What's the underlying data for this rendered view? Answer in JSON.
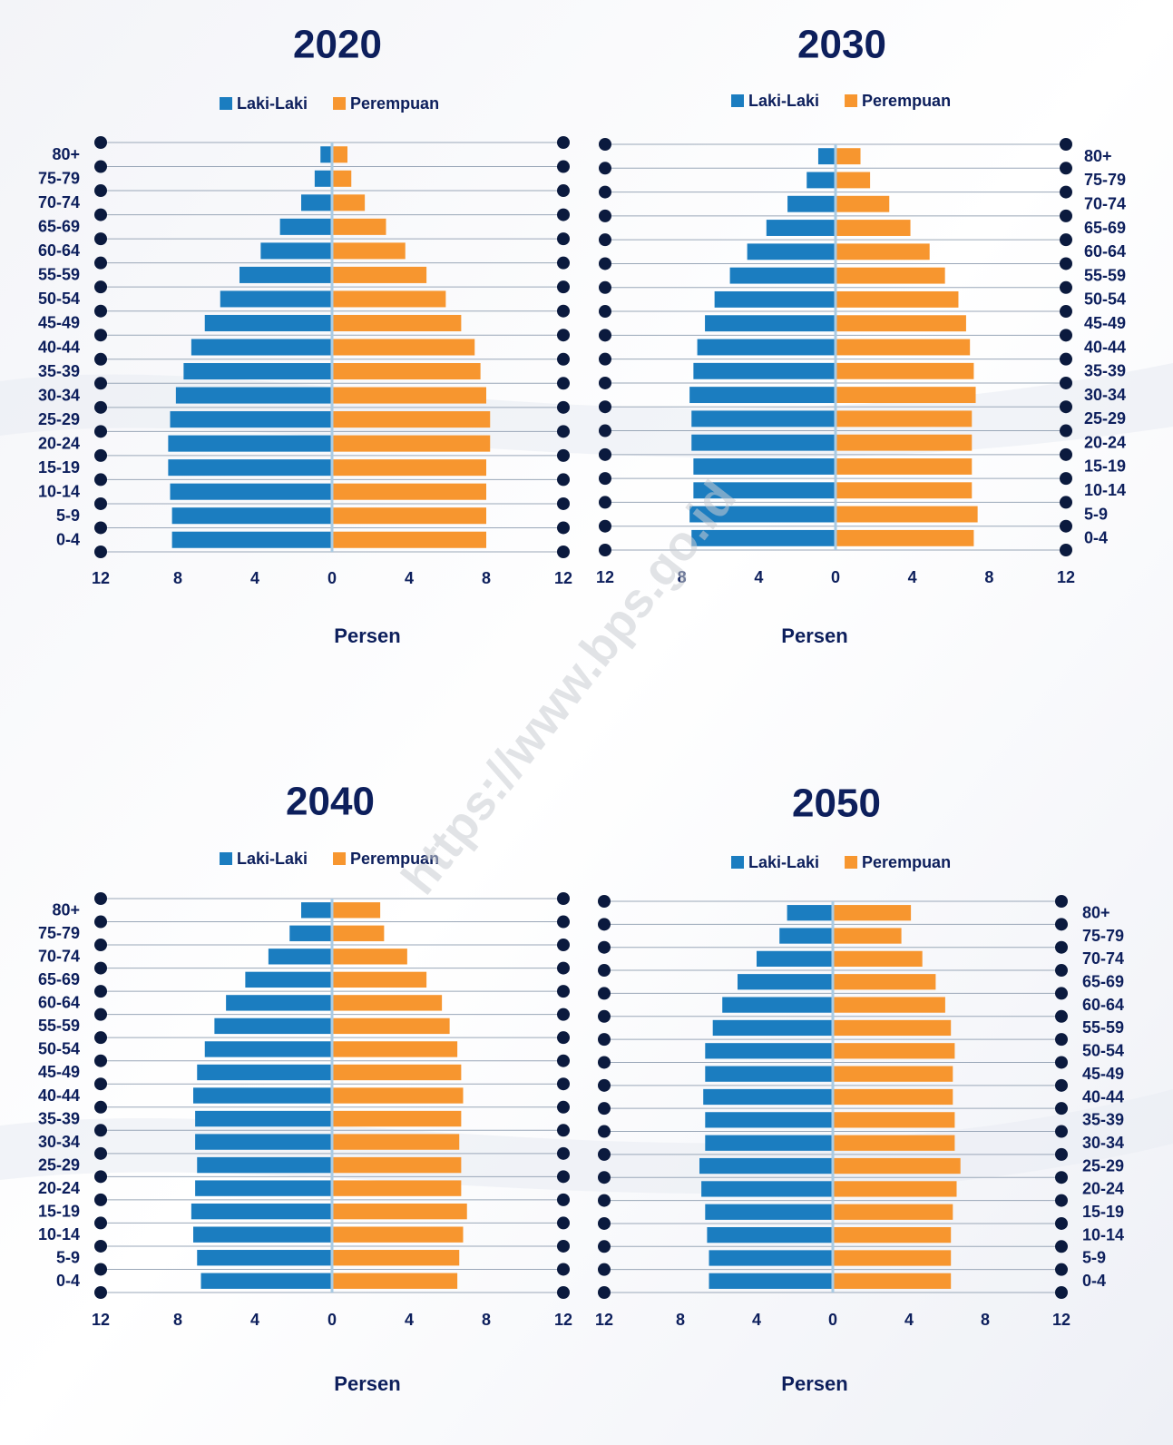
{
  "watermark": "https://www.bps.go.id",
  "chart_data": [
    {
      "type": "pyramid",
      "title": "2020",
      "xlabel": "Persen",
      "categories": [
        "80+",
        "75-79",
        "70-74",
        "65-69",
        "60-64",
        "55-59",
        "50-54",
        "45-49",
        "40-44",
        "35-39",
        "30-34",
        "25-29",
        "20-24",
        "15-19",
        "10-14",
        "5-9",
        "0-4"
      ],
      "series": [
        {
          "name": "Laki-Laki",
          "color": "#1b7dc0",
          "side": "left",
          "values": [
            0.6,
            0.9,
            1.6,
            2.7,
            3.7,
            4.8,
            5.8,
            6.6,
            7.3,
            7.7,
            8.1,
            8.4,
            8.5,
            8.5,
            8.4,
            8.3,
            8.3
          ]
        },
        {
          "name": "Perempuan",
          "color": "#f7962f",
          "side": "right",
          "values": [
            0.8,
            1.0,
            1.7,
            2.8,
            3.8,
            4.9,
            5.9,
            6.7,
            7.4,
            7.7,
            8.0,
            8.2,
            8.2,
            8.0,
            8.0,
            8.0,
            8.0
          ]
        }
      ],
      "xlim": [
        -12,
        12
      ],
      "xticks": [
        {
          "value": -12,
          "label": "12"
        },
        {
          "value": -8,
          "label": "8"
        },
        {
          "value": -4,
          "label": "4"
        },
        0,
        4,
        8,
        12
      ],
      "legend": "top"
    },
    {
      "type": "pyramid",
      "title": "2030",
      "xlabel": "Persen",
      "categories": [
        "80+",
        "75-79",
        "70-74",
        "65-69",
        "60-64",
        "55-59",
        "50-54",
        "45-49",
        "40-44",
        "35-39",
        "30-34",
        "25-29",
        "20-24",
        "15-19",
        "10-14",
        "5-9",
        "0-4"
      ],
      "series": [
        {
          "name": "Laki-Laki",
          "color": "#1b7dc0",
          "side": "left",
          "values": [
            0.9,
            1.5,
            2.5,
            3.6,
            4.6,
            5.5,
            6.3,
            6.8,
            7.2,
            7.4,
            7.6,
            7.5,
            7.5,
            7.4,
            7.4,
            7.6,
            7.5
          ]
        },
        {
          "name": "Perempuan",
          "color": "#f7962f",
          "side": "right",
          "values": [
            1.3,
            1.8,
            2.8,
            3.9,
            4.9,
            5.7,
            6.4,
            6.8,
            7.0,
            7.2,
            7.3,
            7.1,
            7.1,
            7.1,
            7.1,
            7.4,
            7.2
          ]
        }
      ],
      "xlim": [
        -12,
        12
      ],
      "xticks": [
        {
          "value": -12,
          "label": "12"
        },
        {
          "value": -8,
          "label": "8"
        },
        {
          "value": -4,
          "label": "4"
        },
        0,
        4,
        8,
        12
      ],
      "legend": "top"
    },
    {
      "type": "pyramid",
      "title": "2040",
      "xlabel": "Persen",
      "categories": [
        "80+",
        "75-79",
        "70-74",
        "65-69",
        "60-64",
        "55-59",
        "50-54",
        "45-49",
        "40-44",
        "35-39",
        "30-34",
        "25-29",
        "20-24",
        "15-19",
        "10-14",
        "5-9",
        "0-4"
      ],
      "series": [
        {
          "name": "Laki-Laki",
          "color": "#1b7dc0",
          "side": "left",
          "values": [
            1.6,
            2.2,
            3.3,
            4.5,
            5.5,
            6.1,
            6.6,
            7.0,
            7.2,
            7.1,
            7.1,
            7.0,
            7.1,
            7.3,
            7.2,
            7.0,
            6.8
          ]
        },
        {
          "name": "Perempuan",
          "color": "#f7962f",
          "side": "right",
          "values": [
            2.5,
            2.7,
            3.9,
            4.9,
            5.7,
            6.1,
            6.5,
            6.7,
            6.8,
            6.7,
            6.6,
            6.7,
            6.7,
            7.0,
            6.8,
            6.6,
            6.5
          ]
        }
      ],
      "xlim": [
        -12,
        12
      ],
      "xticks": [
        {
          "value": -12,
          "label": "12"
        },
        {
          "value": -8,
          "label": "8"
        },
        {
          "value": -4,
          "label": "4"
        },
        0,
        4,
        8,
        12
      ],
      "legend": "top"
    },
    {
      "type": "pyramid",
      "title": "2050",
      "xlabel": "Persen",
      "categories": [
        "80+",
        "75-79",
        "70-74",
        "65-69",
        "60-64",
        "55-59",
        "50-54",
        "45-49",
        "40-44",
        "35-39",
        "30-34",
        "25-29",
        "20-24",
        "15-19",
        "10-14",
        "5-9",
        "0-4"
      ],
      "series": [
        {
          "name": "Laki-Laki",
          "color": "#1b7dc0",
          "side": "left",
          "values": [
            2.4,
            2.8,
            4.0,
            5.0,
            5.8,
            6.3,
            6.7,
            6.7,
            6.8,
            6.7,
            6.7,
            7.0,
            6.9,
            6.7,
            6.6,
            6.5,
            6.5
          ]
        },
        {
          "name": "Perempuan",
          "color": "#f7962f",
          "side": "right",
          "values": [
            4.1,
            3.6,
            4.7,
            5.4,
            5.9,
            6.2,
            6.4,
            6.3,
            6.3,
            6.4,
            6.4,
            6.7,
            6.5,
            6.3,
            6.2,
            6.2,
            6.2
          ]
        }
      ],
      "xlim": [
        -12,
        12
      ],
      "xticks": [
        {
          "value": -12,
          "label": "12"
        },
        {
          "value": -8,
          "label": "8"
        },
        {
          "value": -4,
          "label": "4"
        },
        0,
        4,
        8,
        12
      ],
      "legend": "top"
    }
  ]
}
